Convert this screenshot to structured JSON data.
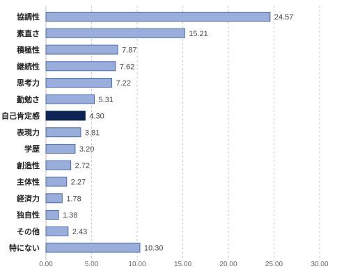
{
  "chart_data": {
    "type": "bar",
    "orientation": "horizontal",
    "categories": [
      "協調性",
      "素直さ",
      "積極性",
      "継続性",
      "思考力",
      "勤勉さ",
      "自己肯定感",
      "表現力",
      "学歴",
      "創造性",
      "主体性",
      "経済力",
      "独自性",
      "その他",
      "特にない"
    ],
    "values": [
      24.57,
      15.21,
      7.87,
      7.62,
      7.22,
      5.31,
      4.3,
      3.81,
      3.2,
      2.72,
      2.27,
      1.78,
      1.38,
      2.43,
      10.3
    ],
    "value_labels": [
      "24.57",
      "15.21",
      "7.87",
      "7.62",
      "7.22",
      "5.31",
      "4.30",
      "3.81",
      "3.20",
      "2.72",
      "2.27",
      "1.78",
      "1.38",
      "2.43",
      "10.30"
    ],
    "highlight_index": 6,
    "xlim": [
      0,
      30
    ],
    "ticks": [
      0,
      5,
      10,
      15,
      20,
      25,
      30
    ],
    "tick_labels": [
      "0.00",
      "5.00",
      "10.00",
      "15.00",
      "20.00",
      "25.00",
      "30.00"
    ],
    "grid": true,
    "colors": {
      "bar_fill": "#9aaedc",
      "bar_stroke": "#4a68b0",
      "highlight_fill": "#0d2456",
      "highlight_stroke": "#0d2456"
    }
  }
}
